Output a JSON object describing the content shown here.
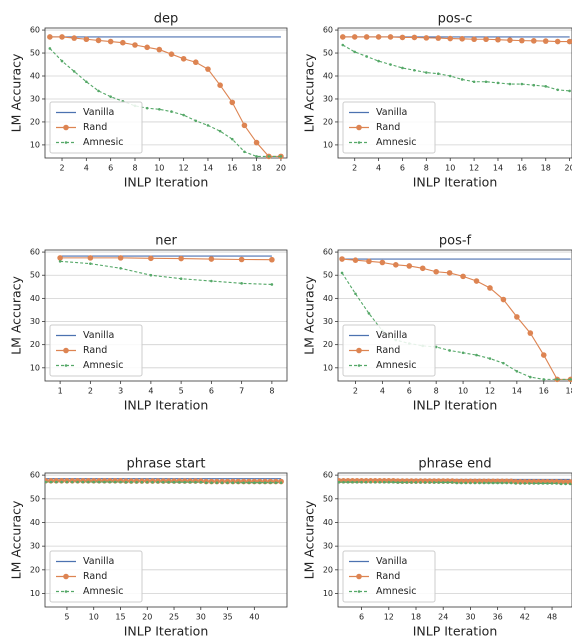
{
  "chart_data": [
    {
      "type": "line",
      "title": "dep",
      "xlabel": "INLP Iteration",
      "ylabel": "LM Accuracy",
      "grid": true,
      "legend": "lower left",
      "x": [
        1,
        2,
        3,
        4,
        5,
        6,
        7,
        8,
        9,
        10,
        11,
        12,
        13,
        14,
        15,
        16,
        17,
        18,
        19,
        20
      ],
      "xlim": [
        0.6,
        20.5
      ],
      "xticks": [
        2,
        4,
        6,
        8,
        10,
        12,
        14,
        16,
        18,
        20
      ],
      "ylim": [
        4.3,
        60.9
      ],
      "yticks": [
        10,
        20,
        30,
        40,
        50,
        60
      ],
      "series": [
        {
          "name": "Vanilla",
          "color": "#4c72b0",
          "marker": "none",
          "dash": "solid",
          "values": [
            57,
            57,
            57,
            57,
            57,
            57,
            57,
            57,
            57,
            57,
            57,
            57,
            57,
            57,
            57,
            57,
            57,
            57,
            57,
            57
          ]
        },
        {
          "name": "Rand",
          "color": "#dd8452",
          "marker": "circle",
          "dash": "solid",
          "values": [
            57,
            57,
            56.5,
            56,
            55.5,
            55,
            54.5,
            53.5,
            52.5,
            51.5,
            49.5,
            47.5,
            46,
            43,
            36,
            28.5,
            18.5,
            11,
            5,
            5
          ]
        },
        {
          "name": "Amnesic",
          "color": "#55a868",
          "marker": "dot",
          "dash": "dashed",
          "values": [
            52,
            46.5,
            42,
            37.5,
            33.5,
            31,
            29,
            27,
            26,
            25.5,
            24.5,
            23,
            20.5,
            18.5,
            16,
            12.5,
            7,
            5,
            5,
            5
          ]
        }
      ]
    },
    {
      "type": "line",
      "title": "pos-c",
      "xlabel": "INLP Iteration",
      "ylabel": "LM Accuracy",
      "grid": true,
      "legend": "lower left",
      "x": [
        1,
        2,
        3,
        4,
        5,
        6,
        7,
        8,
        9,
        10,
        11,
        12,
        13,
        14,
        15,
        16,
        17,
        18,
        19,
        20
      ],
      "xlim": [
        0.6,
        20.2
      ],
      "xticks": [
        2,
        4,
        6,
        8,
        10,
        12,
        14,
        16,
        18,
        20
      ],
      "ylim": [
        4.3,
        60.9
      ],
      "yticks": [
        10,
        20,
        30,
        40,
        50,
        60
      ],
      "series": [
        {
          "name": "Vanilla",
          "color": "#4c72b0",
          "marker": "none",
          "dash": "solid",
          "values": [
            57,
            57,
            57,
            57,
            57,
            57,
            57,
            57,
            57,
            57,
            57,
            57,
            57,
            57,
            57,
            57,
            57,
            57,
            57,
            57
          ]
        },
        {
          "name": "Rand",
          "color": "#dd8452",
          "marker": "circle",
          "dash": "solid",
          "values": [
            57,
            57,
            57,
            57,
            57,
            56.8,
            56.8,
            56.6,
            56.5,
            56.3,
            56.2,
            56,
            56,
            55.8,
            55.6,
            55.4,
            55.3,
            55.2,
            55,
            55
          ]
        },
        {
          "name": "Amnesic",
          "color": "#55a868",
          "marker": "dot",
          "dash": "dashed",
          "values": [
            53.5,
            50.5,
            48.5,
            46.5,
            45,
            43.5,
            42.5,
            41.5,
            41,
            40,
            38.5,
            37.5,
            37.5,
            37,
            36.5,
            36.5,
            36,
            35.5,
            34,
            33.5
          ]
        }
      ]
    },
    {
      "type": "line",
      "title": "ner",
      "xlabel": "INLP Iteration",
      "ylabel": "LM Accuracy",
      "grid": true,
      "legend": "lower left",
      "x": [
        1,
        2,
        3,
        4,
        5,
        6,
        7,
        8
      ],
      "xlim": [
        0.5,
        8.5
      ],
      "xticks": [
        1,
        2,
        3,
        4,
        5,
        6,
        7,
        8
      ],
      "ylim": [
        4.3,
        60.9
      ],
      "yticks": [
        10,
        20,
        30,
        40,
        50,
        60
      ],
      "series": [
        {
          "name": "Vanilla",
          "color": "#4c72b0",
          "marker": "none",
          "dash": "solid",
          "values": [
            58.3,
            58.3,
            58.3,
            58.3,
            58.3,
            58.3,
            58.3,
            58.3
          ]
        },
        {
          "name": "Rand",
          "color": "#dd8452",
          "marker": "circle",
          "dash": "solid",
          "values": [
            57.5,
            57.5,
            57.5,
            57.3,
            57.2,
            57,
            56.8,
            56.7
          ]
        },
        {
          "name": "Amnesic",
          "color": "#55a868",
          "marker": "dot",
          "dash": "dashed",
          "values": [
            56,
            55,
            53,
            50,
            48.5,
            47.5,
            46.5,
            46
          ]
        }
      ]
    },
    {
      "type": "line",
      "title": "pos-f",
      "xlabel": "INLP Iteration",
      "ylabel": "LM Accuracy",
      "grid": true,
      "legend": "lower left",
      "x": [
        1,
        2,
        3,
        4,
        5,
        6,
        7,
        8,
        9,
        10,
        11,
        12,
        13,
        14,
        15,
        16,
        17,
        18
      ],
      "xlim": [
        0.7,
        18.1
      ],
      "xticks": [
        2,
        4,
        6,
        8,
        10,
        12,
        14,
        16,
        18
      ],
      "ylim": [
        4.3,
        60.9
      ],
      "yticks": [
        10,
        20,
        30,
        40,
        50,
        60
      ],
      "series": [
        {
          "name": "Vanilla",
          "color": "#4c72b0",
          "marker": "none",
          "dash": "solid",
          "values": [
            57,
            57,
            57,
            57,
            57,
            57,
            57,
            57,
            57,
            57,
            57,
            57,
            57,
            57,
            57,
            57,
            57,
            57
          ]
        },
        {
          "name": "Rand",
          "color": "#dd8452",
          "marker": "circle",
          "dash": "solid",
          "values": [
            57,
            56.5,
            56,
            55.5,
            54.5,
            54,
            53,
            51.5,
            51,
            49.5,
            47.5,
            44.5,
            39.5,
            32,
            25,
            15.5,
            5,
            5
          ]
        },
        {
          "name": "Amnesic",
          "color": "#55a868",
          "marker": "dot",
          "dash": "dashed",
          "values": [
            51,
            42,
            33.5,
            26,
            22,
            20.5,
            19.5,
            19,
            17.5,
            16.5,
            15.5,
            14,
            12,
            8.5,
            6,
            5,
            5,
            5
          ]
        }
      ]
    },
    {
      "type": "line",
      "title": "phrase start",
      "xlabel": "INLP Iteration",
      "ylabel": "LM Accuracy",
      "grid": true,
      "legend": "lower left",
      "x": [
        1,
        2,
        3,
        4,
        5,
        6,
        7,
        8,
        9,
        10,
        11,
        12,
        13,
        14,
        15,
        16,
        17,
        18,
        19,
        20,
        21,
        22,
        23,
        24,
        25,
        26,
        27,
        28,
        29,
        30,
        31,
        32,
        33,
        34,
        35,
        36,
        37,
        38,
        39,
        40,
        41,
        42,
        43,
        44,
        45
      ],
      "xlim": [
        0.9,
        46.1
      ],
      "xticks": [
        5,
        10,
        15,
        20,
        25,
        30,
        35,
        40
      ],
      "ylim": [
        4.3,
        60.9
      ],
      "yticks": [
        10,
        20,
        30,
        40,
        50,
        60
      ],
      "series": [
        {
          "name": "Vanilla",
          "color": "#4c72b0",
          "marker": "none",
          "dash": "solid",
          "values": [
            58.5,
            58.5,
            58.5,
            58.5,
            58.5,
            58.5,
            58.5,
            58.5,
            58.5,
            58.5,
            58.5,
            58.5,
            58.5,
            58.5,
            58.5,
            58.5,
            58.5,
            58.5,
            58.5,
            58.5,
            58.5,
            58.5,
            58.5,
            58.5,
            58.5,
            58.5,
            58.5,
            58.5,
            58.5,
            58.5,
            58.5,
            58.5,
            58.5,
            58.5,
            58.5,
            58.5,
            58.5,
            58.5,
            58.5,
            58.5,
            58.5,
            58.5,
            58.5,
            58.5,
            58.5
          ]
        },
        {
          "name": "Rand",
          "color": "#dd8452",
          "marker": "circle",
          "dash": "solid",
          "values": [
            57.6,
            57.6,
            57.6,
            57.6,
            57.6,
            57.6,
            57.6,
            57.6,
            57.6,
            57.6,
            57.6,
            57.6,
            57.6,
            57.6,
            57.6,
            57.5,
            57.5,
            57.5,
            57.5,
            57.5,
            57.5,
            57.5,
            57.5,
            57.5,
            57.5,
            57.5,
            57.5,
            57.5,
            57.5,
            57.5,
            57.3,
            57.3,
            57.3,
            57.3,
            57.3,
            57.3,
            57.3,
            57.3,
            57.3,
            57.3,
            57.3,
            57.3,
            57.3,
            57.3,
            57.3
          ]
        },
        {
          "name": "Amnesic",
          "color": "#55a868",
          "marker": "dot",
          "dash": "dashed",
          "values": [
            57.1,
            57.1,
            57.1,
            57.1,
            57.1,
            57.1,
            57.1,
            57.1,
            57.1,
            57.1,
            57.1,
            57.1,
            57.1,
            57.1,
            57.1,
            57,
            57,
            57,
            57,
            57,
            57,
            57,
            57,
            57,
            57,
            57,
            57,
            57,
            57,
            57,
            56.8,
            56.8,
            56.8,
            56.8,
            56.8,
            56.8,
            56.8,
            56.8,
            56.8,
            56.8,
            56.8,
            56.8,
            56.8,
            56.8,
            56.8
          ]
        }
      ]
    },
    {
      "type": "line",
      "title": "phrase end",
      "xlabel": "INLP Iteration",
      "ylabel": "LM Accuracy",
      "grid": true,
      "legend": "lower left",
      "x": [
        1,
        2,
        3,
        4,
        5,
        6,
        7,
        8,
        9,
        10,
        11,
        12,
        13,
        14,
        15,
        16,
        17,
        18,
        19,
        20,
        21,
        22,
        23,
        24,
        25,
        26,
        27,
        28,
        29,
        30,
        31,
        32,
        33,
        34,
        35,
        36,
        37,
        38,
        39,
        40,
        41,
        42,
        43,
        44,
        45,
        46,
        47,
        48,
        49,
        50,
        51,
        52
      ],
      "xlim": [
        0.8,
        52.4
      ],
      "xticks": [
        6,
        12,
        18,
        24,
        30,
        36,
        42,
        48
      ],
      "ylim": [
        4.3,
        60.9
      ],
      "yticks": [
        10,
        20,
        30,
        40,
        50,
        60
      ],
      "series": [
        {
          "name": "Vanilla",
          "color": "#4c72b0",
          "marker": "none",
          "dash": "solid",
          "values": [
            58.2,
            58.2,
            58.2,
            58.2,
            58.2,
            58.2,
            58.2,
            58.2,
            58.2,
            58.2,
            58.2,
            58.2,
            58.2,
            58.2,
            58.2,
            58.2,
            58.2,
            58.2,
            58.2,
            58.2,
            58.2,
            58.2,
            58.2,
            58.2,
            58.2,
            58.2,
            58.2,
            58.2,
            58.2,
            58.2,
            58.2,
            58.2,
            58.2,
            58.2,
            58.2,
            58.2,
            58.2,
            58.2,
            58.2,
            58.2,
            58.2,
            58.2,
            58.2,
            58.2,
            58.2,
            58.2,
            58.2,
            58.2,
            58.2,
            58.2,
            58.2,
            58.2
          ]
        },
        {
          "name": "Rand",
          "color": "#dd8452",
          "marker": "circle",
          "dash": "solid",
          "values": [
            57.6,
            57.6,
            57.6,
            57.6,
            57.6,
            57.6,
            57.6,
            57.6,
            57.6,
            57.6,
            57.6,
            57.6,
            57.6,
            57.5,
            57.5,
            57.5,
            57.5,
            57.5,
            57.5,
            57.5,
            57.5,
            57.5,
            57.5,
            57.5,
            57.5,
            57.5,
            57.4,
            57.4,
            57.4,
            57.4,
            57.4,
            57.4,
            57.4,
            57.4,
            57.4,
            57.4,
            57.4,
            57.4,
            57.4,
            57.2,
            57.2,
            57.2,
            57.2,
            57.2,
            57.2,
            57.2,
            57.2,
            57.2,
            57.2,
            57.1,
            57.1,
            57.1
          ]
        },
        {
          "name": "Amnesic",
          "color": "#55a868",
          "marker": "dot",
          "dash": "dashed",
          "values": [
            57,
            57,
            57,
            57,
            57,
            57,
            57,
            57,
            57,
            57,
            57,
            57,
            57,
            56.9,
            56.9,
            56.9,
            56.9,
            56.9,
            56.9,
            56.9,
            56.9,
            56.9,
            56.9,
            56.9,
            56.9,
            56.9,
            56.7,
            56.7,
            56.7,
            56.7,
            56.7,
            56.7,
            56.7,
            56.7,
            56.7,
            56.7,
            56.7,
            56.7,
            56.7,
            56.5,
            56.5,
            56.5,
            56.5,
            56.5,
            56.5,
            56.5,
            56.5,
            56.5,
            56.5,
            56.3,
            56.3,
            56.3
          ]
        }
      ]
    }
  ]
}
